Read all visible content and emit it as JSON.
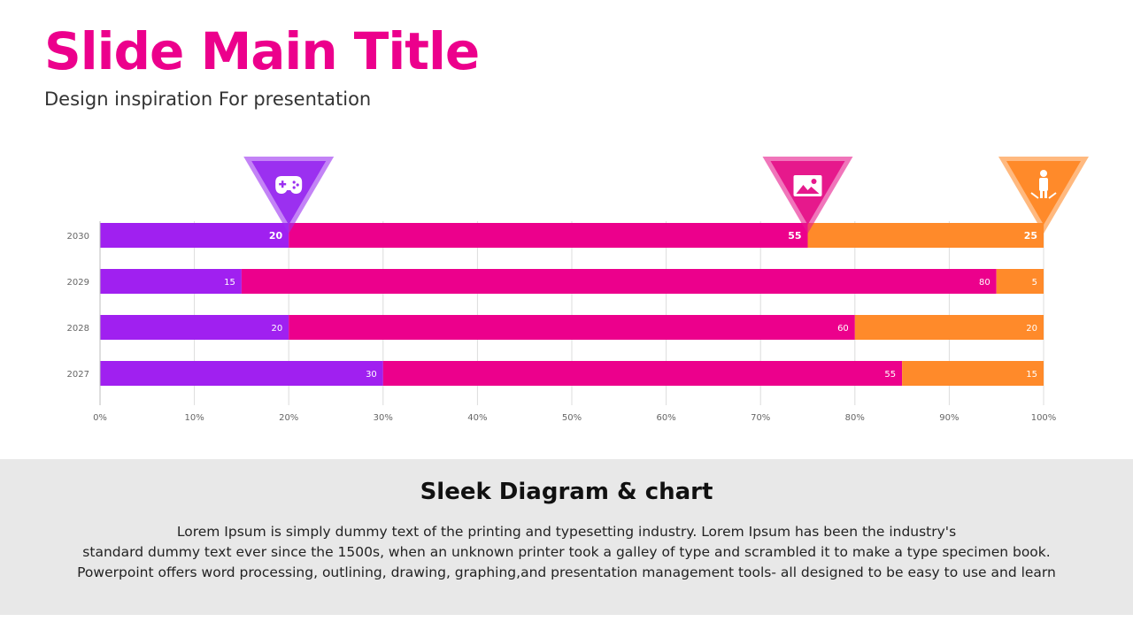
{
  "slide": {
    "title": "Slide Main Title",
    "subtitle": "Design inspiration For presentation"
  },
  "footer": {
    "heading": "Sleek Diagram & chart",
    "lines": [
      "Lorem Ipsum is simply dummy text of the printing and typesetting industry. Lorem Ipsum has been the industry's",
      "standard dummy text ever since the 1500s, when an unknown printer took a galley of type and scrambled it to make a type specimen book.",
      "Powerpoint offers word processing, outlining, drawing, graphing,and presentation management tools- all designed to be easy to use and learn"
    ]
  },
  "chart_data": {
    "type": "bar",
    "orientation": "horizontal",
    "stacked": "percent",
    "categories": [
      "2030",
      "2029",
      "2028",
      "2027"
    ],
    "series": [
      {
        "values": [
          20,
          15,
          20,
          30
        ],
        "color": "#a020f0",
        "marker_icon": "gamepad-icon",
        "marker_color": "#9b30f0"
      },
      {
        "values": [
          55,
          80,
          60,
          55
        ],
        "color": "#ec008c",
        "marker_icon": "image-icon",
        "marker_color": "#e6198c"
      },
      {
        "values": [
          25,
          5,
          20,
          15
        ],
        "color": "#ff8a2a",
        "marker_icon": "person-icon",
        "marker_color": "#ff8a2a"
      }
    ],
    "xlim": [
      0,
      100
    ],
    "x_ticks": [
      "0%",
      "10%",
      "20%",
      "30%",
      "40%",
      "50%",
      "60%",
      "70%",
      "80%",
      "90%",
      "100%"
    ],
    "bold_row": "2030",
    "grid": true,
    "legend": "none"
  }
}
